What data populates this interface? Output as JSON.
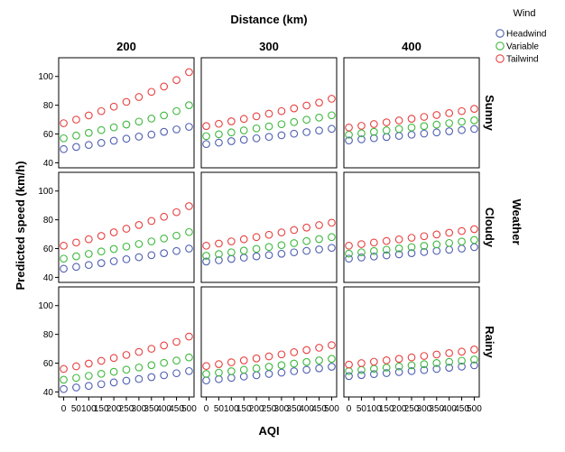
{
  "chart_data": {
    "type": "scatter",
    "top_title": "Distance (km)",
    "right_title": "Weather",
    "xlabel": "AQI",
    "ylabel": "Predicted speed (km/h)",
    "xlim": [
      -20,
      520
    ],
    "x_ticks": [
      0,
      50,
      100,
      150,
      200,
      250,
      300,
      350,
      400,
      450,
      500
    ],
    "ylim": [
      36.5,
      113
    ],
    "y_ticks": [
      40,
      60,
      80,
      100
    ],
    "columns": [
      "200",
      "300",
      "400"
    ],
    "rows": [
      "Sunny",
      "Cloudy",
      "Rainy"
    ],
    "legend": {
      "title": "Wind",
      "entries": [
        {
          "name": "Headwind",
          "color": "#4f5fb0"
        },
        {
          "name": "Variable",
          "color": "#3db83d"
        },
        {
          "name": "Tailwind",
          "color": "#e84040"
        }
      ]
    },
    "x": [
      0,
      50,
      100,
      150,
      200,
      250,
      300,
      350,
      400,
      450,
      500
    ],
    "panels": [
      {
        "row": "Sunny",
        "column": "200",
        "series": [
          {
            "name": "Headwind",
            "values": [
              49.5,
              51.0,
              52.4,
              53.8,
              55.3,
              56.7,
              58.2,
              59.6,
              61.5,
              63.2,
              65.0
            ]
          },
          {
            "name": "Variable",
            "values": [
              57.0,
              58.9,
              60.8,
              62.7,
              64.6,
              66.6,
              68.6,
              70.7,
              72.9,
              75.9,
              80.0
            ]
          },
          {
            "name": "Tailwind",
            "values": [
              67.5,
              70.0,
              72.9,
              75.9,
              79.0,
              82.3,
              85.7,
              89.3,
              93.0,
              97.5,
              103.0
            ]
          }
        ]
      },
      {
        "row": "Sunny",
        "column": "300",
        "series": [
          {
            "name": "Headwind",
            "values": [
              53.0,
              54.0,
              55.0,
              56.0,
              57.0,
              58.0,
              59.1,
              60.2,
              61.3,
              62.4,
              63.6
            ]
          },
          {
            "name": "Variable",
            "values": [
              58.5,
              59.8,
              61.1,
              62.5,
              63.9,
              65.3,
              66.8,
              68.3,
              69.9,
              71.4,
              73.0
            ]
          },
          {
            "name": "Tailwind",
            "values": [
              65.5,
              67.1,
              68.8,
              70.5,
              72.3,
              74.1,
              75.9,
              77.8,
              79.8,
              81.8,
              84.5
            ]
          }
        ]
      },
      {
        "row": "Sunny",
        "column": "400",
        "series": [
          {
            "name": "Headwind",
            "values": [
              55.5,
              56.3,
              57.1,
              57.9,
              58.7,
              59.5,
              60.3,
              61.1,
              61.9,
              62.7,
              63.5
            ]
          },
          {
            "name": "Variable",
            "values": [
              59.5,
              60.5,
              61.5,
              62.5,
              63.5,
              64.5,
              65.5,
              66.5,
              67.5,
              68.5,
              69.5
            ]
          },
          {
            "name": "Tailwind",
            "values": [
              64.5,
              65.7,
              66.9,
              68.1,
              69.4,
              70.6,
              71.9,
              73.2,
              74.5,
              75.9,
              77.5
            ]
          }
        ]
      },
      {
        "row": "Cloudy",
        "column": "200",
        "series": [
          {
            "name": "Headwind",
            "values": [
              46.0,
              47.3,
              48.6,
              49.9,
              51.2,
              52.6,
              54.0,
              55.4,
              56.8,
              58.3,
              60.0
            ]
          },
          {
            "name": "Variable",
            "values": [
              53.0,
              54.6,
              56.3,
              58.0,
              59.7,
              61.4,
              63.2,
              65.0,
              67.0,
              69.0,
              71.5
            ]
          },
          {
            "name": "Tailwind",
            "values": [
              62.0,
              64.2,
              66.5,
              68.8,
              71.3,
              73.8,
              76.4,
              79.2,
              82.1,
              85.3,
              89.5
            ]
          }
        ]
      },
      {
        "row": "Cloudy",
        "column": "300",
        "series": [
          {
            "name": "Headwind",
            "values": [
              51.0,
              51.9,
              52.8,
              53.7,
              54.6,
              55.5,
              56.4,
              57.4,
              58.4,
              59.4,
              60.5
            ]
          },
          {
            "name": "Variable",
            "values": [
              55.0,
              56.2,
              57.4,
              58.6,
              59.8,
              61.1,
              62.4,
              63.8,
              65.2,
              66.6,
              68.0
            ]
          },
          {
            "name": "Tailwind",
            "values": [
              62.0,
              63.5,
              65.0,
              66.5,
              68.0,
              69.6,
              71.2,
              72.9,
              74.6,
              76.3,
              78.0
            ]
          }
        ]
      },
      {
        "row": "Cloudy",
        "column": "400",
        "series": [
          {
            "name": "Headwind",
            "values": [
              53.0,
              53.8,
              54.5,
              55.3,
              56.0,
              56.8,
              57.6,
              58.4,
              59.2,
              60.0,
              61.0
            ]
          },
          {
            "name": "Variable",
            "values": [
              56.5,
              57.4,
              58.3,
              59.2,
              60.1,
              61.0,
              61.9,
              62.9,
              63.9,
              64.9,
              66.0
            ]
          },
          {
            "name": "Tailwind",
            "values": [
              62.0,
              63.1,
              64.2,
              65.3,
              66.4,
              67.5,
              68.6,
              69.8,
              71.0,
              72.2,
              73.5
            ]
          }
        ]
      },
      {
        "row": "Rainy",
        "column": "200",
        "series": [
          {
            "name": "Headwind",
            "values": [
              42.0,
              43.1,
              44.2,
              45.4,
              46.6,
              47.8,
              49.0,
              50.3,
              51.6,
              53.0,
              54.5
            ]
          },
          {
            "name": "Variable",
            "values": [
              48.5,
              49.8,
              51.2,
              52.6,
              54.0,
              55.5,
              57.0,
              58.6,
              60.2,
              61.8,
              64.0
            ]
          },
          {
            "name": "Tailwind",
            "values": [
              56.0,
              57.8,
              59.7,
              61.6,
              63.6,
              65.7,
              67.8,
              70.0,
              72.3,
              74.8,
              78.5
            ]
          }
        ]
      },
      {
        "row": "Rainy",
        "column": "300",
        "series": [
          {
            "name": "Headwind",
            "values": [
              48.0,
              48.9,
              49.8,
              50.7,
              51.6,
              52.5,
              53.4,
              54.4,
              55.4,
              56.4,
              57.5
            ]
          },
          {
            "name": "Variable",
            "values": [
              52.5,
              53.4,
              54.4,
              55.4,
              56.4,
              57.5,
              58.6,
              59.7,
              60.8,
              61.9,
              63.0
            ]
          },
          {
            "name": "Tailwind",
            "values": [
              58.0,
              59.3,
              60.6,
              61.9,
              63.3,
              64.7,
              66.1,
              67.6,
              69.1,
              70.7,
              72.5
            ]
          }
        ]
      },
      {
        "row": "Rainy",
        "column": "400",
        "series": [
          {
            "name": "Headwind",
            "values": [
              51.0,
              51.7,
              52.4,
              53.1,
              53.8,
              54.5,
              55.2,
              56.0,
              56.8,
              57.6,
              58.5
            ]
          },
          {
            "name": "Variable",
            "values": [
              54.5,
              55.3,
              56.1,
              56.9,
              57.7,
              58.5,
              59.3,
              60.1,
              60.9,
              61.7,
              62.5
            ]
          },
          {
            "name": "Tailwind",
            "values": [
              59.0,
              60.0,
              61.0,
              62.0,
              63.0,
              64.0,
              65.0,
              66.0,
              67.0,
              68.0,
              69.5
            ]
          }
        ]
      }
    ]
  }
}
